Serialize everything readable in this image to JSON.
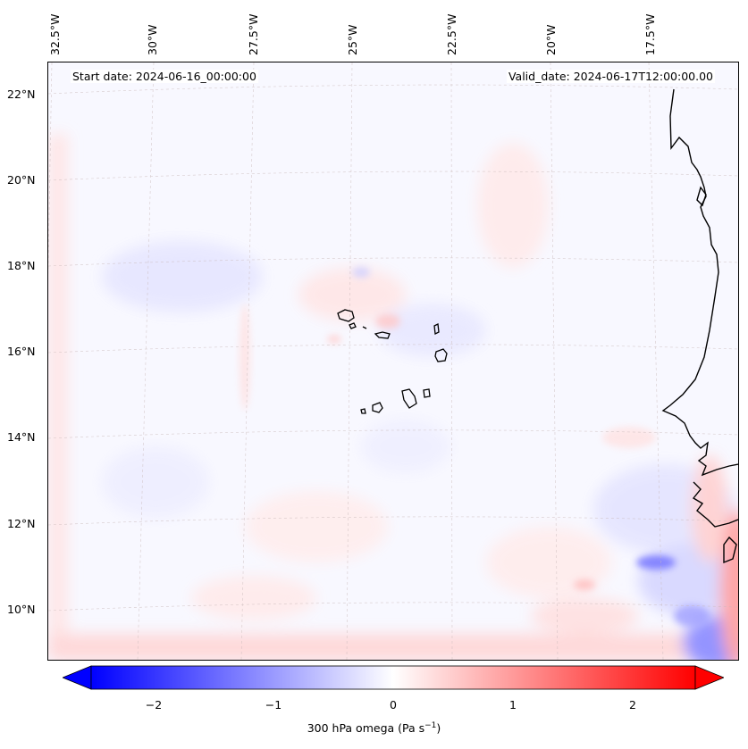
{
  "header": {
    "start_date": "Start date: 2024-06-16_00:00:00",
    "valid_date": "Valid_date: 2024-06-17T12:00:00.00"
  },
  "longitude_labels": [
    "32.5°W",
    "30°W",
    "27.5°W",
    "25°W",
    "22.5°W",
    "20°W",
    "17.5°W"
  ],
  "latitude_labels": [
    "22°N",
    "20°N",
    "18°N",
    "16°N",
    "14°N",
    "12°N",
    "10°N"
  ],
  "colorbar": {
    "min": -2.6,
    "max": 2.6,
    "ticks": [
      "−2",
      "−1",
      "0",
      "1",
      "2"
    ],
    "tick_values": [
      -2,
      -1,
      0,
      1,
      2
    ],
    "label_text": "300 hPa omega (Pa s",
    "label_exponent": "−1",
    "label_close": ")",
    "colormap": "bwr",
    "colors": {
      "low": "#0000ff",
      "mid": "#ffffff",
      "high": "#ff0000"
    }
  },
  "map": {
    "field": "300 hPa omega",
    "coastline_color": "#000000",
    "grid": true
  }
}
